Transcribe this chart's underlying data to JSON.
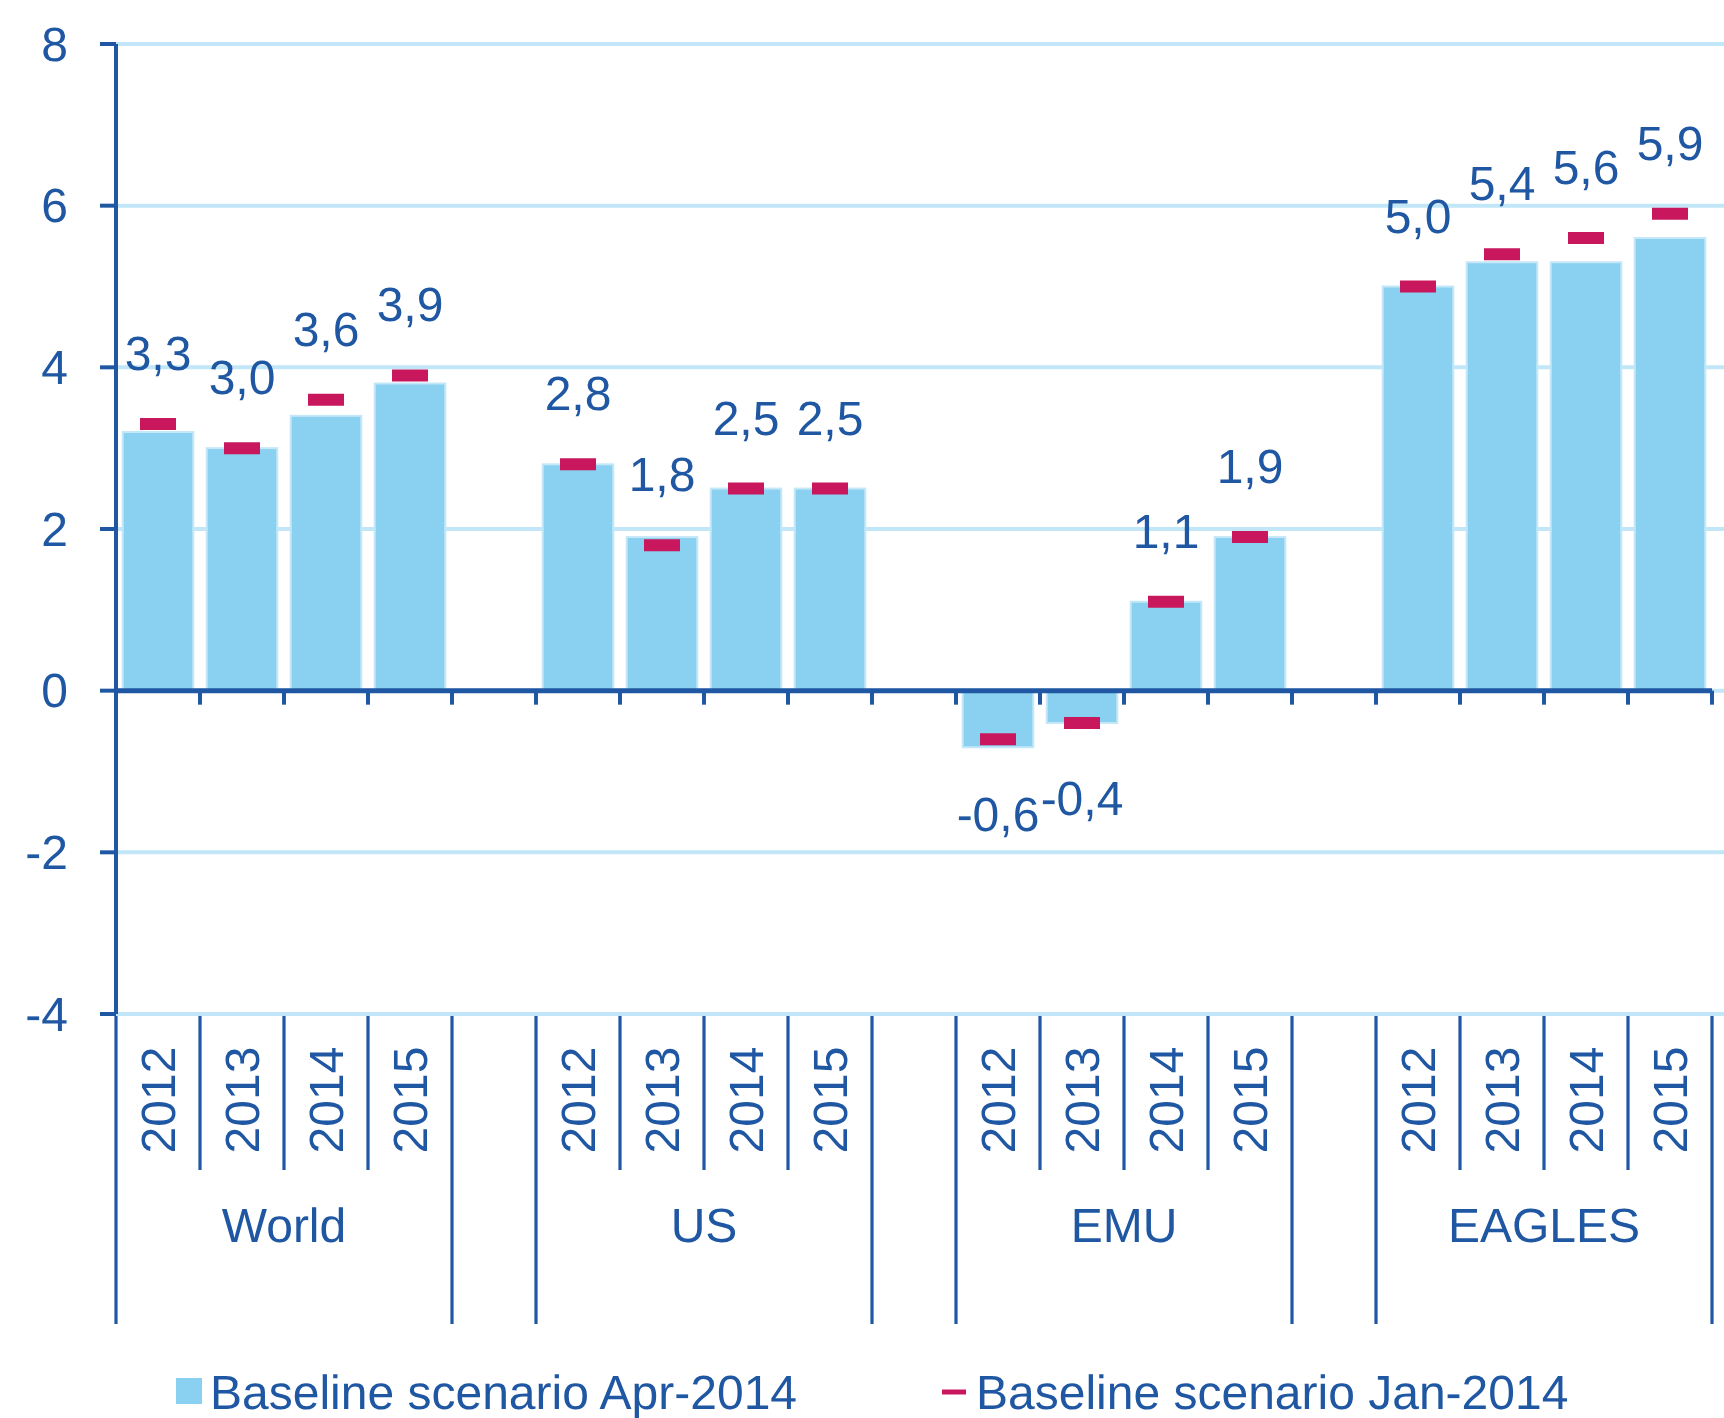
{
  "chart_data": {
    "type": "bar",
    "categories": [
      "2012",
      "2013",
      "2014",
      "2015",
      null,
      "2012",
      "2013",
      "2014",
      "2015",
      null,
      "2012",
      "2013",
      "2014",
      "2015",
      null,
      "2012",
      "2013",
      "2014",
      "2015"
    ],
    "series": [
      {
        "name": "Baseline scenario Apr-2014",
        "color": "#8ad0f0",
        "values": [
          3.2,
          3.0,
          3.4,
          3.8,
          null,
          2.8,
          1.9,
          2.5,
          2.5,
          null,
          -0.7,
          -0.4,
          1.1,
          1.9,
          null,
          5.0,
          5.3,
          5.3,
          5.6
        ]
      },
      {
        "name": "Baseline scenario Jan-2014",
        "type": "scatter",
        "color": "#c8175d",
        "values": [
          3.3,
          3.0,
          3.6,
          3.9,
          null,
          2.8,
          1.8,
          2.5,
          2.5,
          null,
          -0.6,
          -0.4,
          1.1,
          1.9,
          null,
          5.0,
          5.4,
          5.6,
          5.9
        ],
        "value_labels": [
          "3,3",
          "3,0",
          "3,6",
          "3,9",
          null,
          "2,8",
          "1,8",
          "2,5",
          "2,5",
          null,
          "-0,6",
          "-0,4",
          "1,1",
          "1,9",
          null,
          "5,0",
          "5,4",
          "5,6",
          "5,9"
        ]
      }
    ],
    "ylim": [
      -4,
      8
    ],
    "yticks": [
      -4,
      -2,
      0,
      2,
      4,
      6,
      8
    ],
    "grid": "y",
    "legend": "bottom",
    "ref_lines": [
      {
        "axis": "y",
        "value": 0,
        "color": "#1f57a3"
      }
    ],
    "annotations": [
      "World",
      "US",
      "EMU",
      "EAGLES"
    ]
  }
}
